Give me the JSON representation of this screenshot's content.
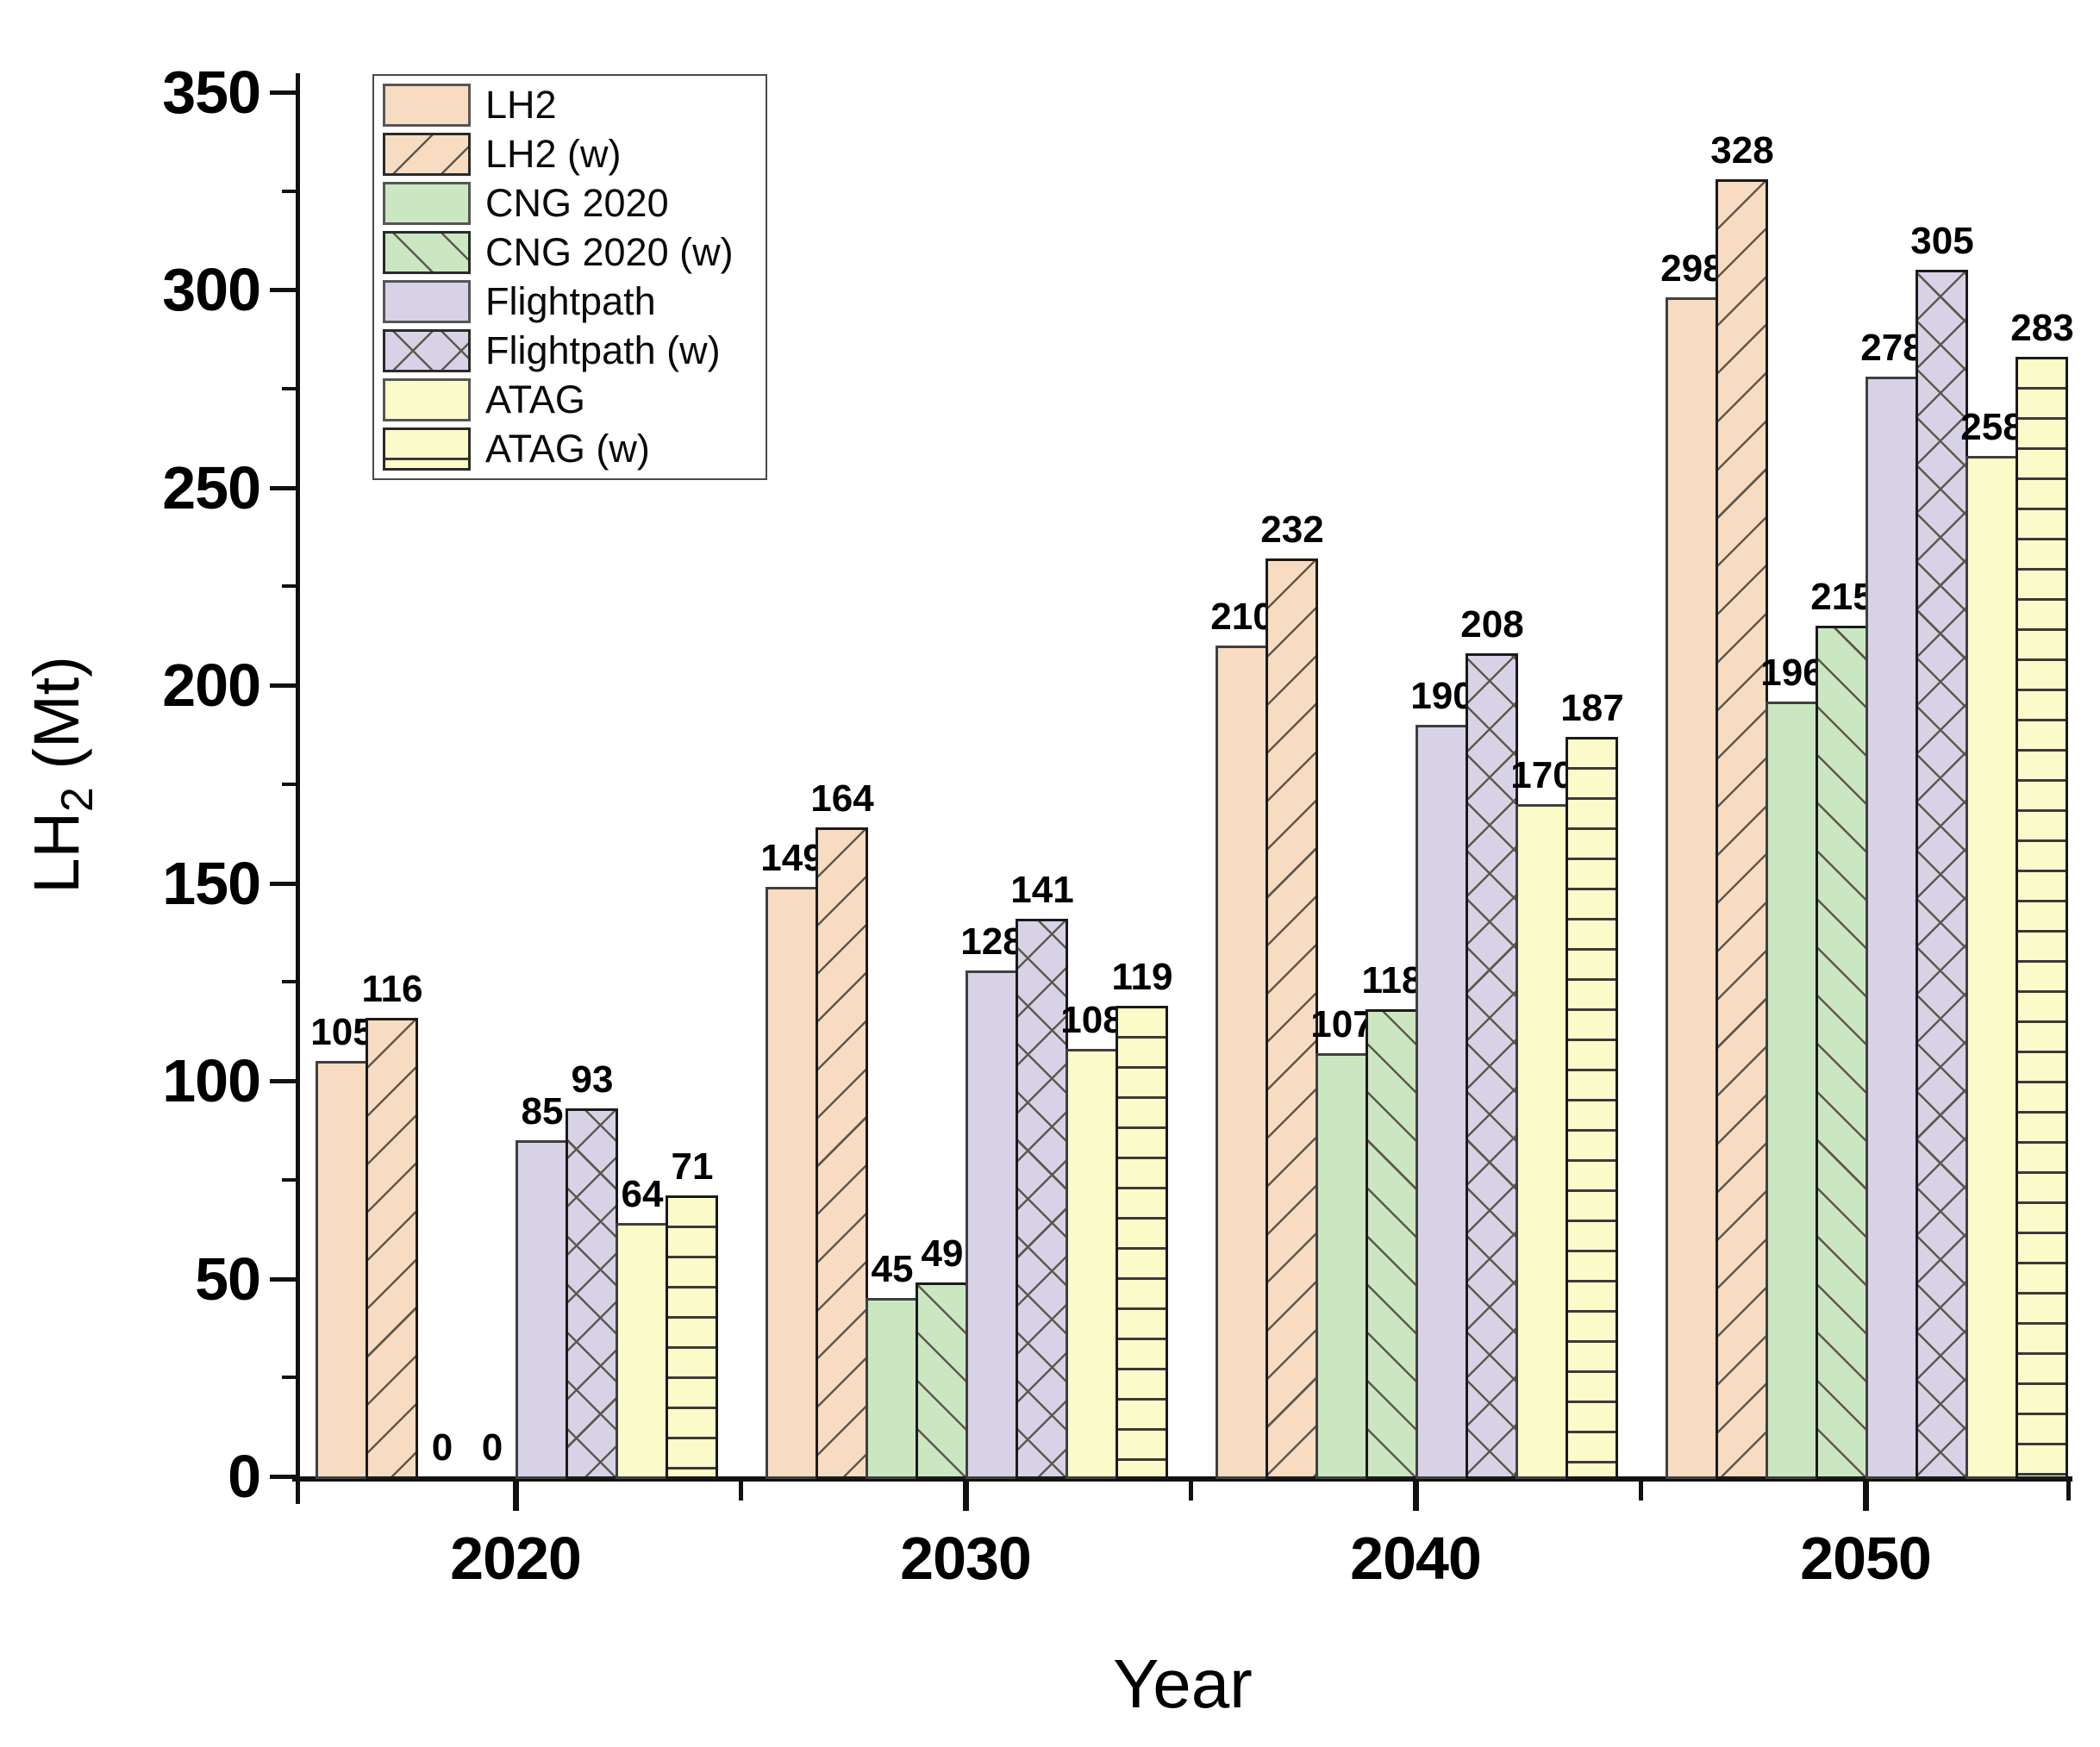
{
  "chart_data": {
    "type": "bar",
    "title": "",
    "xlabel": "Year",
    "ylabel_text": "LH2 (Mt)",
    "ylabel_parts": {
      "prefix": "LH",
      "sub": "2",
      "suffix": " (Mt)"
    },
    "categories": [
      "2020",
      "2030",
      "2040",
      "2050"
    ],
    "series": [
      {
        "name": "LH2",
        "values": [
          105,
          149,
          210,
          298
        ],
        "color": "#F7DCC2",
        "pattern": "solid"
      },
      {
        "name": "LH2 (w)",
        "values": [
          116,
          164,
          232,
          328
        ],
        "color": "#F7DCC2",
        "pattern": "fwd"
      },
      {
        "name": "CNG 2020",
        "values": [
          0,
          45,
          107,
          196
        ],
        "color": "#CBE7C2",
        "pattern": "solid"
      },
      {
        "name": "CNG 2020 (w)",
        "values": [
          0,
          49,
          118,
          215
        ],
        "color": "#CBE7C2",
        "pattern": "back"
      },
      {
        "name": "Flightpath",
        "values": [
          85,
          128,
          190,
          278
        ],
        "color": "#D8D2E7",
        "pattern": "solid"
      },
      {
        "name": "Flightpath (w)",
        "values": [
          93,
          141,
          208,
          305
        ],
        "color": "#D8D2E7",
        "pattern": "cross"
      },
      {
        "name": "ATAG",
        "values": [
          64,
          108,
          170,
          258
        ],
        "color": "#FBFBC9",
        "pattern": "solid"
      },
      {
        "name": "ATAG (w)",
        "values": [
          71,
          119,
          187,
          283
        ],
        "color": "#FBFBC9",
        "pattern": "horiz"
      }
    ],
    "bar_value_labels": [
      [
        "105",
        "149",
        "210",
        "298"
      ],
      [
        "116",
        "164",
        "232",
        "328"
      ],
      [
        "0",
        "45",
        "107",
        "196"
      ],
      [
        "0",
        "49",
        "118",
        "215"
      ],
      [
        "85",
        "128",
        "190",
        "278"
      ],
      [
        "93",
        "141",
        "208",
        "305"
      ],
      [
        "64",
        "108",
        "170",
        "258"
      ],
      [
        "71",
        "119",
        "187",
        "283"
      ]
    ],
    "y_ticks": [
      0,
      50,
      100,
      150,
      200,
      250,
      300,
      350
    ],
    "y_minor_ticks": [
      25,
      75,
      125,
      175,
      225,
      275,
      325
    ],
    "ylim": [
      0,
      355
    ],
    "grid": false,
    "legend_position": "top-left",
    "colors": {
      "hatch_diagonal": "#5E584E",
      "hatch_horizontal": "#3A3A3A",
      "axis": "#111111",
      "text": "#000000",
      "background": "#FFFFFF"
    }
  }
}
